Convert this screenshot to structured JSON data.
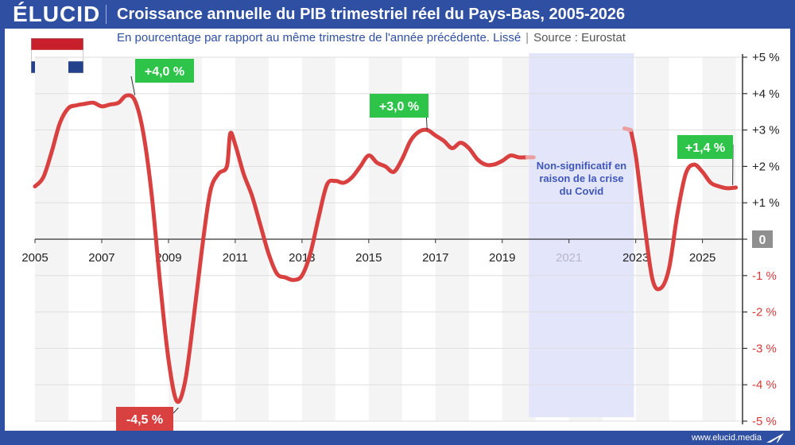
{
  "header": {
    "logo": "ÉLUCID",
    "title": "Croissance annuelle du PIB trimestriel réel du Pays-Bas, 2005-2026",
    "subtitle": "En pourcentage par rapport au même trimestre de l'année précédente. Lissé",
    "separator": "|",
    "source": "Source : Eurostat"
  },
  "footer": {
    "url": "www.elucid.media"
  },
  "colors": {
    "brand": "#2f4fa3",
    "line": "#d94040",
    "positive_label": "#2ec44a",
    "negative_label": "#d94040",
    "covid_band": "#e3e6fa",
    "zero_badge": "#8f8f8f"
  },
  "chart_data": {
    "type": "line",
    "xlim": [
      2005,
      2026.2
    ],
    "ylim": [
      -5,
      5
    ],
    "x_ticks": [
      "2005",
      "2007",
      "2009",
      "2011",
      "2013",
      "2015",
      "2017",
      "2019",
      "2021",
      "2023",
      "2025"
    ],
    "dim_ticks": [
      "2021"
    ],
    "y_ticks": [
      "+5 %",
      "+4 %",
      "+3 %",
      "+2 %",
      "+1 %",
      "0",
      "-1 %",
      "-2 %",
      "-3 %",
      "-4 %",
      "-5 %"
    ],
    "grid": true,
    "series": [
      {
        "segments": [
          [
            [
              2005.0,
              1.45
            ],
            [
              2005.25,
              1.7
            ],
            [
              2005.5,
              2.4
            ],
            [
              2005.75,
              3.2
            ],
            [
              2006.0,
              3.6
            ],
            [
              2006.25,
              3.68
            ],
            [
              2006.5,
              3.72
            ],
            [
              2006.75,
              3.75
            ],
            [
              2007.0,
              3.65
            ],
            [
              2007.25,
              3.7
            ],
            [
              2007.5,
              3.75
            ],
            [
              2007.75,
              3.95
            ],
            [
              2008.0,
              3.8
            ],
            [
              2008.25,
              2.9
            ],
            [
              2008.5,
              1.2
            ],
            [
              2008.75,
              -1.2
            ],
            [
              2009.0,
              -3.3
            ],
            [
              2009.25,
              -4.45
            ],
            [
              2009.5,
              -3.9
            ],
            [
              2009.75,
              -2.2
            ],
            [
              2010.0,
              -0.3
            ],
            [
              2010.25,
              1.3
            ],
            [
              2010.5,
              1.8
            ],
            [
              2010.75,
              2.0
            ],
            [
              2010.85,
              2.9
            ],
            [
              2011.0,
              2.6
            ],
            [
              2011.25,
              1.8
            ],
            [
              2011.5,
              1.2
            ],
            [
              2011.75,
              0.4
            ],
            [
              2012.0,
              -0.4
            ],
            [
              2012.25,
              -0.95
            ],
            [
              2012.5,
              -1.05
            ],
            [
              2012.75,
              -1.12
            ],
            [
              2013.0,
              -1.0
            ],
            [
              2013.25,
              -0.4
            ],
            [
              2013.5,
              0.6
            ],
            [
              2013.75,
              1.5
            ],
            [
              2014.0,
              1.6
            ],
            [
              2014.25,
              1.55
            ],
            [
              2014.5,
              1.7
            ],
            [
              2014.75,
              2.0
            ],
            [
              2015.0,
              2.3
            ],
            [
              2015.25,
              2.1
            ],
            [
              2015.5,
              2.0
            ],
            [
              2015.75,
              1.85
            ],
            [
              2016.0,
              2.2
            ],
            [
              2016.25,
              2.7
            ],
            [
              2016.5,
              2.95
            ],
            [
              2016.75,
              3.0
            ],
            [
              2017.0,
              2.85
            ],
            [
              2017.25,
              2.7
            ],
            [
              2017.5,
              2.5
            ],
            [
              2017.75,
              2.65
            ],
            [
              2018.0,
              2.5
            ],
            [
              2018.25,
              2.2
            ],
            [
              2018.5,
              2.05
            ],
            [
              2018.75,
              2.05
            ],
            [
              2019.0,
              2.15
            ],
            [
              2019.25,
              2.3
            ],
            [
              2019.5,
              2.25
            ],
            [
              2019.75,
              2.25
            ]
          ],
          [
            [
              2022.85,
              3.0
            ],
            [
              2023.0,
              2.3
            ],
            [
              2023.25,
              0.5
            ],
            [
              2023.5,
              -1.1
            ],
            [
              2023.75,
              -1.35
            ],
            [
              2024.0,
              -0.8
            ],
            [
              2024.25,
              0.7
            ],
            [
              2024.5,
              1.8
            ],
            [
              2024.75,
              2.05
            ],
            [
              2025.0,
              1.85
            ],
            [
              2025.25,
              1.55
            ],
            [
              2025.5,
              1.45
            ],
            [
              2025.75,
              1.4
            ],
            [
              2026.0,
              1.42
            ]
          ]
        ]
      }
    ],
    "callouts": [
      {
        "label": "+4,0 %",
        "x": 2007.85,
        "y": 4.0,
        "kind": "positive"
      },
      {
        "label": "-4,5 %",
        "x": 2009.25,
        "y": -4.5,
        "kind": "negative"
      },
      {
        "label": "+3,0 %",
        "x": 2016.75,
        "y": 3.0,
        "kind": "positive"
      },
      {
        "label": "+1,4 %",
        "x": 2026.0,
        "y": 1.4,
        "kind": "positive"
      }
    ],
    "covid_band": {
      "from": 2019.8,
      "to": 2022.95,
      "text": [
        "Non-significatif en",
        "raison de la crise",
        "du Covid"
      ]
    }
  }
}
